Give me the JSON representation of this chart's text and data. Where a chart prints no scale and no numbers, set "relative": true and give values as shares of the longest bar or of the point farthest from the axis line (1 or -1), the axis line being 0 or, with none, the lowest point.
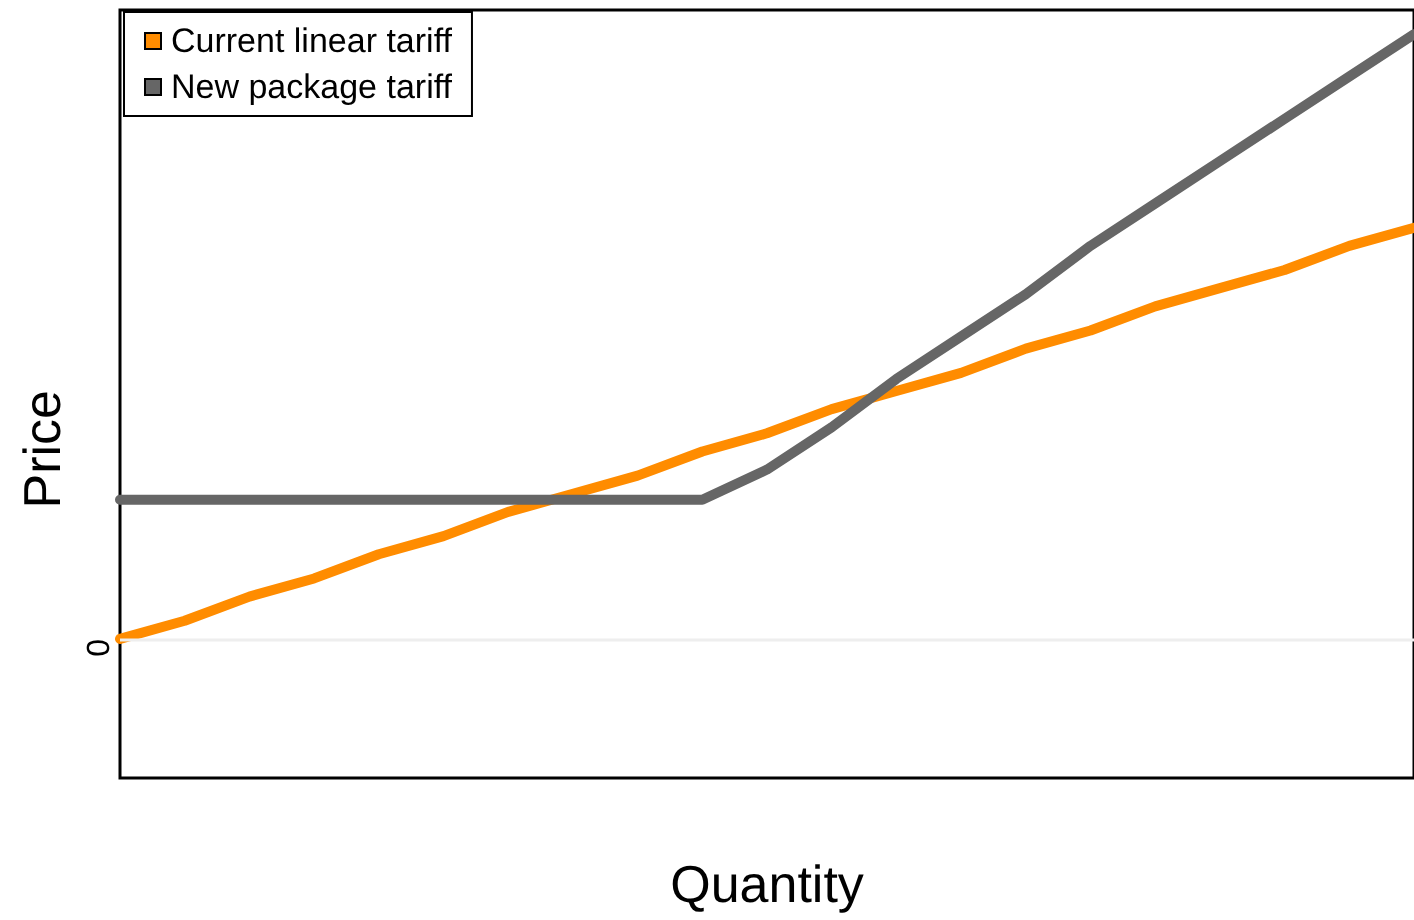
{
  "chart_data": {
    "type": "line",
    "relative": true,
    "xlabel": "Quantity",
    "ylabel": "Price",
    "categories": [
      null,
      null,
      null,
      null,
      null,
      null,
      null,
      null,
      null,
      null,
      null,
      null,
      null,
      null,
      null,
      null,
      null,
      null,
      null,
      null,
      null
    ],
    "series": [
      {
        "name": "Current linear tariff",
        "color": "#ff8c00",
        "values": [
          0,
          0.03,
          0.07,
          0.1,
          0.14,
          0.17,
          0.21,
          0.24,
          0.27,
          0.31,
          0.34,
          0.38,
          0.41,
          0.44,
          0.48,
          0.51,
          0.55,
          0.58,
          0.61,
          0.65,
          0.68
        ]
      },
      {
        "name": "New package tariff",
        "color": "#666666",
        "values": [
          0.23,
          0.23,
          0.23,
          0.23,
          0.23,
          0.23,
          0.23,
          0.23,
          0.23,
          0.23,
          0.28,
          0.35,
          0.43,
          0.5,
          0.57,
          0.65,
          0.72,
          0.79,
          0.86,
          0.93,
          1.0
        ]
      }
    ],
    "ref_lines": [
      {
        "axis": "y",
        "value": 0,
        "label": "0",
        "color": "#eeeeee"
      }
    ],
    "legend": "top left",
    "grid": false,
    "marker": "none",
    "line_style": "solid"
  }
}
